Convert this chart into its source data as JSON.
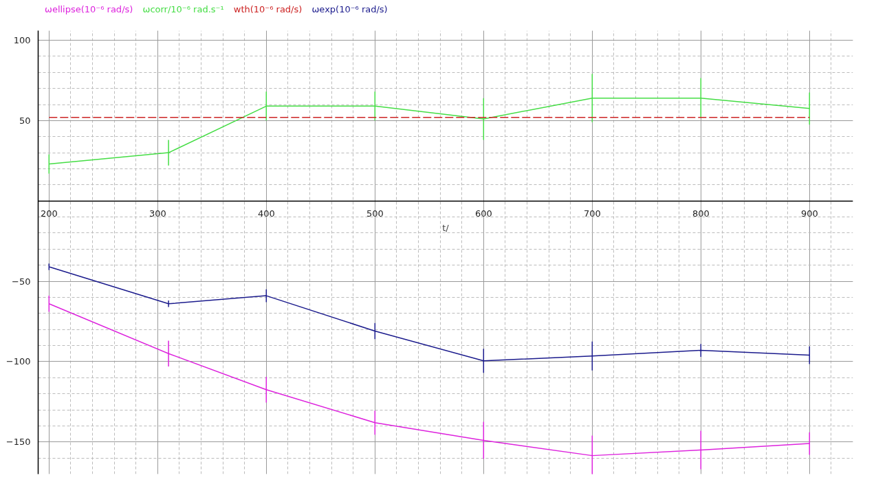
{
  "chart_data": {
    "type": "line",
    "xlabel": "t/",
    "legend": "top",
    "grid": true,
    "marker": "none",
    "xlim": [
      190,
      940
    ],
    "ylim": [
      -170,
      106
    ],
    "xticks": [
      200,
      300,
      400,
      500,
      600,
      700,
      800,
      900
    ],
    "yticks": [
      -150,
      -100,
      -50,
      {
        "value": 0,
        "label": null
      },
      50,
      100
    ],
    "x": [
      200,
      310,
      400,
      500,
      600,
      700,
      800,
      900
    ],
    "series": [
      {
        "name": "ωellipse(10⁻⁶ rad/s)",
        "color": "#dd22dd",
        "values": [
          -64,
          -95,
          -117.5,
          -138,
          -149,
          -158.5,
          -155,
          -151
        ],
        "errors": [
          5,
          8,
          8,
          7.5,
          11.5,
          12.5,
          12,
          7
        ]
      },
      {
        "name": "ωcorr/10⁻⁶ rad.s⁻¹",
        "color": "#44dd44",
        "values": [
          23,
          30,
          59,
          59,
          51,
          64,
          64,
          57.5
        ],
        "errors": [
          6,
          8,
          9,
          9,
          13,
          15,
          12.5,
          10
        ]
      },
      {
        "name": "wth(10⁻⁶ rad/s)",
        "color": "#cc2222",
        "line_style": "dashed",
        "values": [
          52,
          52,
          52,
          52,
          52,
          52,
          52,
          52
        ]
      },
      {
        "name": "ωexp(10⁻⁶ rad/s)",
        "color": "#1a1a8c",
        "values": [
          -41,
          -64,
          -59,
          -81,
          -99.5,
          -96.5,
          -93,
          -96
        ],
        "errors": [
          2,
          2,
          4,
          5,
          7.5,
          9,
          4,
          5.5
        ]
      }
    ]
  }
}
